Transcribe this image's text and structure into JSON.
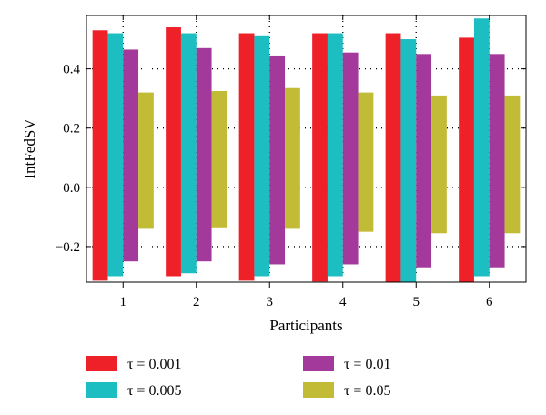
{
  "chart_data": {
    "type": "bar",
    "xlabel": "Participants",
    "ylabel": "IntFedSV",
    "categories": [
      "1",
      "2",
      "3",
      "4",
      "5",
      "6"
    ],
    "ylim": [
      -0.32,
      0.58
    ],
    "yticks": [
      -0.2,
      0.0,
      0.2,
      0.4
    ],
    "ytick_labels": [
      "−0.2",
      "0.0",
      "0.2",
      "0.4"
    ],
    "grid": "dotted",
    "legend_position": "bottom",
    "series": [
      {
        "name": "τ = 0.001",
        "color": "#ee2128",
        "values": [
          [
            -0.315,
            0.53
          ],
          [
            -0.3,
            0.54
          ],
          [
            -0.315,
            0.52
          ],
          [
            -0.318,
            0.52
          ],
          [
            -0.32,
            0.52
          ],
          [
            -0.32,
            0.505
          ]
        ]
      },
      {
        "name": "τ = 0.005",
        "color": "#1dbec2",
        "values": [
          [
            -0.3,
            0.52
          ],
          [
            -0.29,
            0.52
          ],
          [
            -0.3,
            0.51
          ],
          [
            -0.3,
            0.52
          ],
          [
            -0.32,
            0.5
          ],
          [
            -0.3,
            0.57
          ]
        ]
      },
      {
        "name": "τ = 0.01",
        "color": "#a3399a",
        "values": [
          [
            -0.25,
            0.465
          ],
          [
            -0.25,
            0.47
          ],
          [
            -0.26,
            0.445
          ],
          [
            -0.26,
            0.455
          ],
          [
            -0.27,
            0.45
          ],
          [
            -0.27,
            0.45
          ]
        ]
      },
      {
        "name": "τ = 0.05",
        "color": "#c2bb35",
        "values": [
          [
            -0.14,
            0.32
          ],
          [
            -0.135,
            0.325
          ],
          [
            -0.14,
            0.335
          ],
          [
            -0.15,
            0.32
          ],
          [
            -0.155,
            0.31
          ],
          [
            -0.155,
            0.31
          ]
        ]
      }
    ]
  }
}
